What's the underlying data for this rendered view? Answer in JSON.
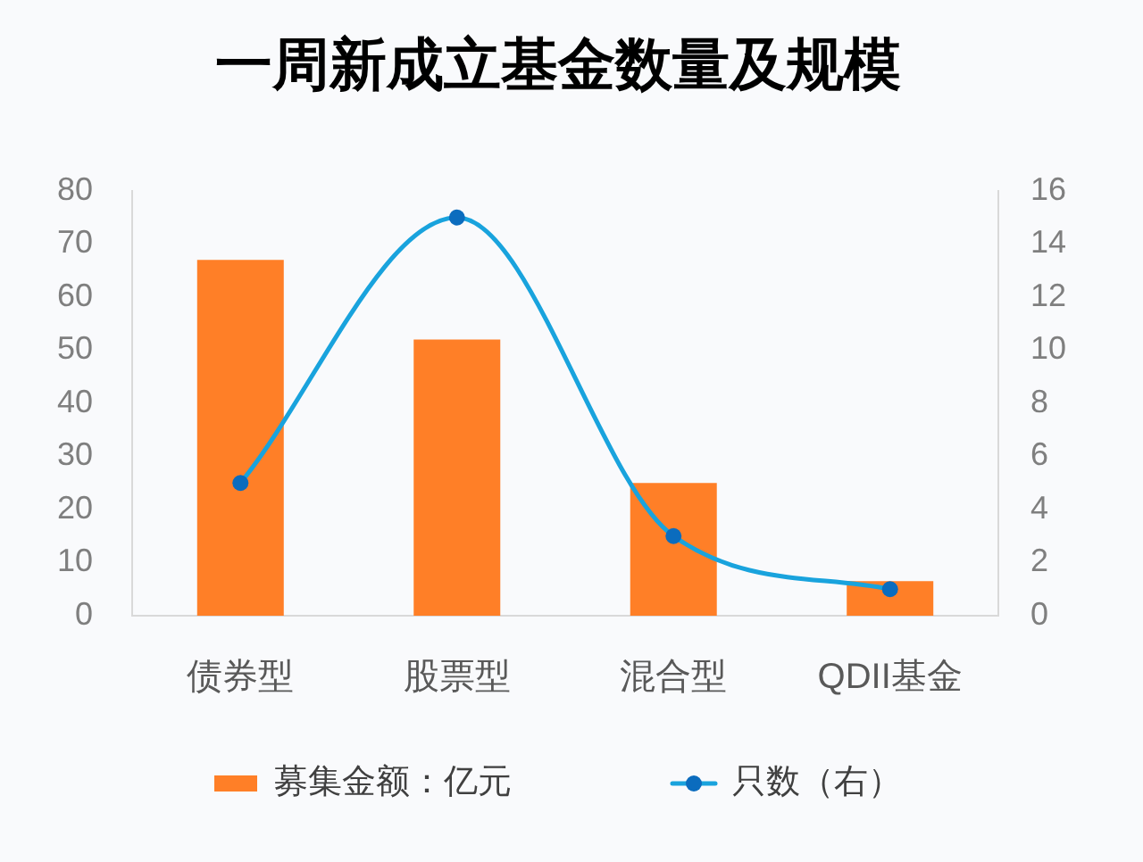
{
  "chart_data": {
    "type": "bar",
    "title": "一周新成立基金数量及规模",
    "categories": [
      "债券型",
      "股票型",
      "混合型",
      "QDII基金"
    ],
    "series": [
      {
        "name": "募集金额：亿元",
        "color": "#ff7f27",
        "values": [
          67,
          52,
          25,
          6.5
        ]
      },
      {
        "name": "只数（右）",
        "type": "line",
        "axis": "y2",
        "color": "#19a3dd",
        "values": [
          5,
          15,
          3,
          1
        ]
      }
    ],
    "ylim": [
      0,
      80
    ],
    "yticks": [
      0,
      10,
      20,
      30,
      40,
      50,
      60,
      70,
      80
    ],
    "y2lim": [
      0,
      16
    ],
    "y2ticks": [
      0,
      2,
      4,
      6,
      8,
      10,
      12,
      14,
      16
    ],
    "grid": false,
    "legend": "bottom",
    "marker": "circle",
    "line_style": "solid"
  }
}
